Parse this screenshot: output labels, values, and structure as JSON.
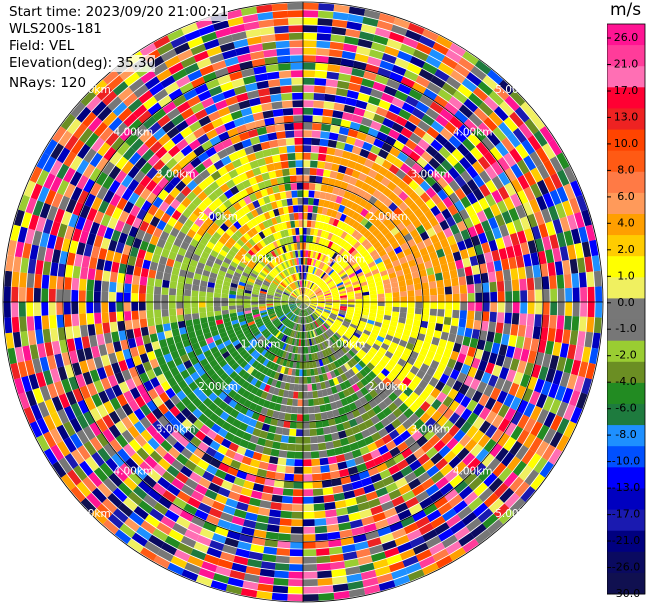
{
  "header": {
    "start_time": "Start time: 2023/09/20 21:00:21",
    "instrument": "WLS200s-181",
    "field": "Field: VEL",
    "elevation": "Elevation(deg): 35.30",
    "nrays": "NRays: 120"
  },
  "colorbar": {
    "unit": "m/s",
    "ticks": [
      "26.0",
      "21.0",
      "17.0",
      "13.0",
      "10.0",
      "8.0",
      "6.0",
      "4.0",
      "2.0",
      "1.0",
      "0.0",
      "-1.0",
      "-2.0",
      "-4.0",
      "-6.0",
      "-8.0",
      "-10.0",
      "-13.0",
      "-17.0",
      "-21.0",
      "-26.0",
      "-30.0"
    ],
    "colors": [
      "#ff1493",
      "#ff3c9a",
      "#ff6fb4",
      "#ff0033",
      "#ee2222",
      "#ff4400",
      "#ff5a14",
      "#ff7a45",
      "#ff9a5a",
      "#ff9f00",
      "#ffcc00",
      "#ffff00",
      "#f0f060",
      "#777777",
      "#777777",
      "#9acd32",
      "#6b8e23",
      "#228b22",
      "#1e7b3e",
      "#1e90ff",
      "#0050ff",
      "#0000ff",
      "#0000c0",
      "#1a1ab0",
      "#000080",
      "#0a0a60",
      "#101050"
    ]
  },
  "chart_data": {
    "type": "heatmap",
    "projection": "polar (PPI)",
    "field": "VEL",
    "unit": "m/s",
    "nrays": 120,
    "range_rings_km": [
      1.0,
      2.0,
      3.0,
      4.0,
      5.0
    ],
    "ring_labels": [
      "1.00km",
      "2.00km",
      "3.00km",
      "4.00km",
      "5.00km"
    ],
    "colorbar_ticks": [
      26.0,
      21.0,
      17.0,
      13.0,
      10.0,
      8.0,
      6.0,
      4.0,
      2.0,
      1.0,
      0.0,
      -1.0,
      -2.0,
      -4.0,
      -6.0,
      -8.0,
      -10.0,
      -13.0,
      -17.0,
      -21.0,
      -26.0,
      -30.0
    ],
    "colorbar_range": [
      -30.0,
      30.0
    ]
  }
}
